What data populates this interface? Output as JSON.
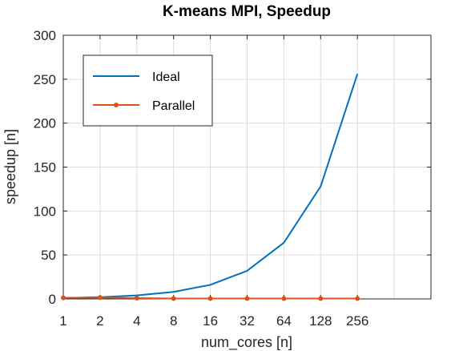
{
  "chart_data": {
    "type": "line",
    "title": "K-means MPI, Speedup",
    "xlabel": "num_cores [n]",
    "ylabel": "speedup [n]",
    "x_scale": "log2",
    "categories": [
      "1",
      "2",
      "4",
      "8",
      "16",
      "32",
      "64",
      "128",
      "256"
    ],
    "x": [
      1,
      2,
      4,
      8,
      16,
      32,
      64,
      128,
      256
    ],
    "ylim": [
      0,
      300
    ],
    "yticks": [
      0,
      50,
      100,
      150,
      200,
      250,
      300
    ],
    "grid": true,
    "legend_position": "top-left",
    "series": [
      {
        "name": "Ideal",
        "color": "#0072BD",
        "marker": "none",
        "values": [
          1,
          2,
          4,
          8,
          16,
          32,
          64,
          128,
          256
        ]
      },
      {
        "name": "Parallel",
        "color": "#D95319",
        "marker": "dot",
        "values": [
          1.3,
          1.5,
          0.9,
          0.5,
          0.4,
          0.4,
          0.4,
          0.4,
          0.4
        ]
      }
    ]
  }
}
